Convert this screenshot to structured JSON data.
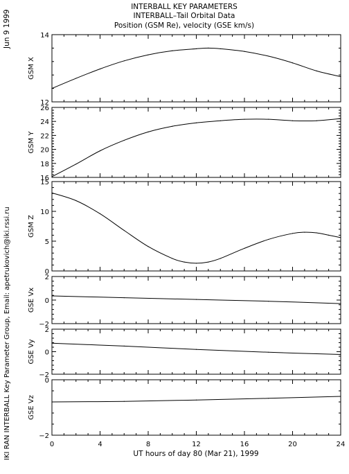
{
  "header": {
    "line1": "INTERBALL KEY PARAMETERS",
    "line2": "INTERBALL–Tail Orbital Data",
    "line3": "Position (GSM Re), velocity (GSE km/s)"
  },
  "side": {
    "date": "Jun  9 1999",
    "credit": "IKI RAN INTERBALL Key Parameter Group, Email: apetrukovich@iki.rssi.ru"
  },
  "x_axis": {
    "label": "UT hours of day  80 (Mar 21), 1999",
    "ticks": [
      "0",
      "4",
      "8",
      "12",
      "16",
      "20",
      "24"
    ]
  },
  "chart_data": [
    {
      "type": "line",
      "ylabel": "GSM X",
      "xlim": [
        0,
        24
      ],
      "ylim": [
        12,
        14
      ],
      "yticks": [
        "12",
        "14"
      ],
      "x": [
        0,
        2,
        4,
        6,
        8,
        10,
        12,
        13,
        14,
        16,
        18,
        20,
        22,
        24
      ],
      "values": [
        12.4,
        12.7,
        12.98,
        13.22,
        13.4,
        13.52,
        13.58,
        13.6,
        13.58,
        13.5,
        13.36,
        13.16,
        12.92,
        12.75
      ]
    },
    {
      "type": "line",
      "ylabel": "GSM Y",
      "xlim": [
        0,
        24
      ],
      "ylim": [
        16,
        26
      ],
      "yticks": [
        "16",
        "18",
        "20",
        "22",
        "24",
        "26"
      ],
      "x": [
        0,
        2,
        4,
        6,
        8,
        10,
        12,
        14,
        16,
        18,
        20,
        22,
        24
      ],
      "values": [
        16.1,
        17.9,
        19.8,
        21.3,
        22.5,
        23.3,
        23.8,
        24.1,
        24.3,
        24.3,
        24.1,
        24.1,
        24.4
      ]
    },
    {
      "type": "line",
      "ylabel": "GSM Z",
      "xlim": [
        0,
        24
      ],
      "ylim": [
        0,
        15
      ],
      "yticks": [
        "0",
        "5",
        "10",
        "15"
      ],
      "x": [
        0,
        2,
        4,
        6,
        8,
        10,
        11,
        12,
        13,
        14,
        16,
        18,
        20,
        21,
        22,
        23,
        24
      ],
      "values": [
        13.1,
        11.8,
        9.6,
        6.8,
        4.1,
        2.1,
        1.5,
        1.3,
        1.5,
        2.1,
        3.8,
        5.3,
        6.3,
        6.5,
        6.4,
        6.0,
        5.6
      ]
    },
    {
      "type": "line",
      "ylabel": "GSE Vx",
      "xlim": [
        0,
        24
      ],
      "ylim": [
        -2,
        2
      ],
      "yticks": [
        "−2",
        "0",
        "2"
      ],
      "x": [
        0,
        6,
        12,
        18,
        24
      ],
      "values": [
        0.35,
        0.2,
        0.05,
        -0.1,
        -0.3
      ]
    },
    {
      "type": "line",
      "ylabel": "GSE Vy",
      "xlim": [
        0,
        24
      ],
      "ylim": [
        -2,
        2
      ],
      "yticks": [
        "−2",
        "0",
        "2"
      ],
      "x": [
        0,
        6,
        12,
        18,
        24
      ],
      "values": [
        0.75,
        0.5,
        0.2,
        -0.05,
        -0.25
      ]
    },
    {
      "type": "line",
      "ylabel": "GSE Vz",
      "xlim": [
        0,
        24
      ],
      "ylim": [
        -2,
        0
      ],
      "yticks": [
        "−2",
        "0"
      ],
      "x": [
        0,
        6,
        12,
        18,
        24
      ],
      "values": [
        -0.8,
        -0.78,
        -0.73,
        -0.67,
        -0.6
      ]
    }
  ]
}
